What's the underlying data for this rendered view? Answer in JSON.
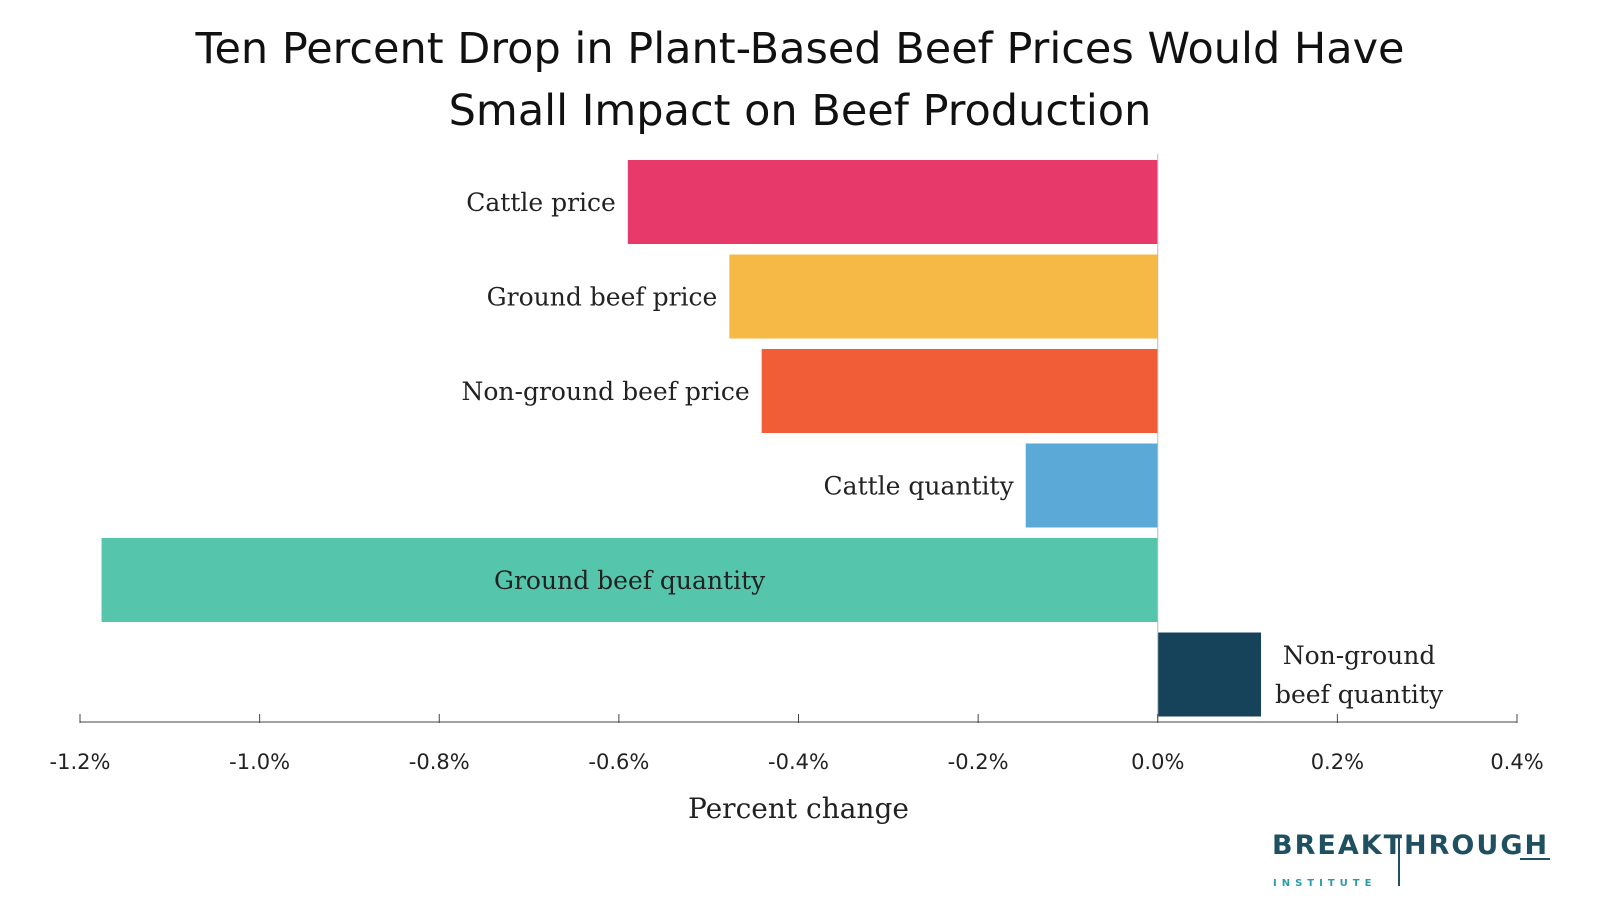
{
  "chart_data": {
    "type": "bar",
    "orientation": "horizontal",
    "title_lines": [
      "Ten Percent Drop in Plant-Based Beef Prices Would Have",
      "Small Impact on Beef Production"
    ],
    "xlabel": "Percent change",
    "xlim": [
      -1.2,
      0.4
    ],
    "xticks": [
      -1.2,
      -1.0,
      -0.8,
      -0.6,
      -0.4,
      -0.2,
      0.0,
      0.2,
      0.4
    ],
    "xtick_labels": [
      "-1.2%",
      "-1.0%",
      "-0.8%",
      "-0.6%",
      "-0.4%",
      "-0.2%",
      "0.0%",
      "0.2%",
      "0.4%"
    ],
    "grid": false,
    "bars": [
      {
        "label": [
          "Cattle price"
        ],
        "value": -0.59,
        "color": "#e83a6a"
      },
      {
        "label": [
          "Ground beef price"
        ],
        "value": -0.477,
        "color": "#f6b946"
      },
      {
        "label": [
          "Non-ground beef  price"
        ],
        "value": -0.441,
        "color": "#f05d36"
      },
      {
        "label": [
          "Cattle quantity"
        ],
        "value": -0.147,
        "color": "#5aa9d6"
      },
      {
        "label": [
          "Ground beef quantity"
        ],
        "value": -1.176,
        "color": "#55c6ab"
      },
      {
        "label": [
          "Non-ground",
          "beef quantity"
        ],
        "value": 0.115,
        "color": "#17435a"
      }
    ]
  },
  "logo": {
    "word": "BREAKTHROUGH",
    "sub": "INSTITUTE"
  }
}
